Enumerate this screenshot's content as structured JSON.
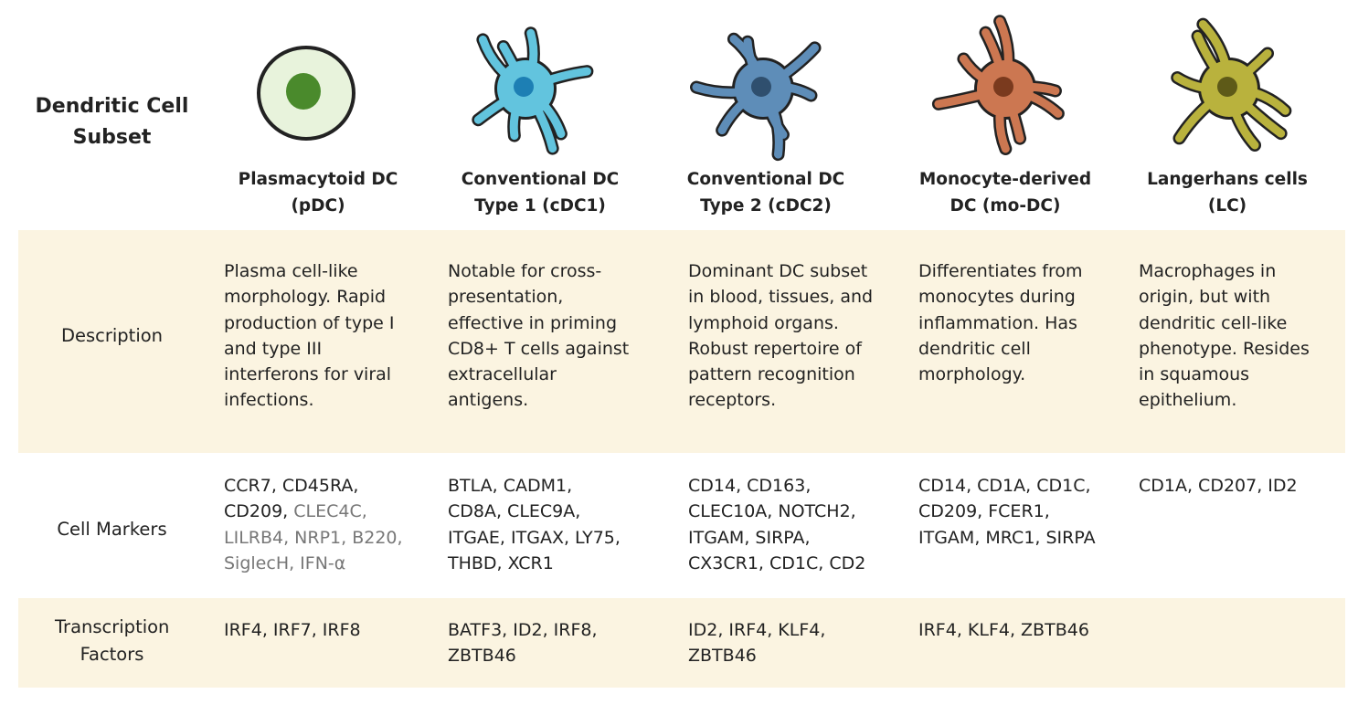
{
  "header": {
    "title": "Dendritic Cell Subset"
  },
  "columns": [
    {
      "name": "Plasmacytoid DC (pDC)"
    },
    {
      "name": "Conventional DC Type 1 (cDC1)"
    },
    {
      "name": "Conventional DC Type 2 (cDC2)"
    },
    {
      "name": "Monocyte-derived DC (mo-DC)"
    },
    {
      "name": "Langerhans cells (LC)"
    }
  ],
  "rows": [
    {
      "label": "Description",
      "cells": [
        [
          "Plasma cell-like morphology. Rapid production of type I and type III interferons for viral infections."
        ],
        [
          "Notable for cross-presentation, effective in priming CD8+ T cells against extracellular antigens."
        ],
        [
          "Dominant DC subset in blood, tissues, and lymphoid organs. Robust repertoire of pattern recognition receptors."
        ],
        [
          "Differentiates from monocytes during inflammation. Has dendritic cell morphology."
        ],
        [
          "Macrophages in origin, but with dendritic cell-like phenotype. Resides in squamous epithelium."
        ]
      ]
    },
    {
      "label": "Cell Markers",
      "cells": [
        [
          "CCR7, CD45RA, CD209,",
          "CLEC4C, LILRB4, NRP1, B220, SiglecH, IFN-α"
        ],
        [
          "BTLA, CADM1, CD8A, CLEC9A, ITGAE, ITGAX, LY75, THBD, XCR1"
        ],
        [
          "CD14, CD163, CLEC10A, NOTCH2, ITGAM, SIRPA, CX3CR1, CD1C, CD2"
        ],
        [
          "CD14, CD1A, CD1C, CD209, FCER1, ITGAM, MRC1, SIRPA"
        ],
        [
          "CD1A, CD207, ID2"
        ]
      ]
    },
    {
      "label": "Transcription Factors",
      "cells": [
        [
          "IRF4, IRF7, IRF8"
        ],
        [
          "BATF3, ID2, IRF8, ZBTB46"
        ],
        [
          "ID2, IRF4, KLF4, ZBTB46"
        ],
        [
          "IRF4, KLF4, ZBTB46"
        ],
        []
      ]
    }
  ]
}
